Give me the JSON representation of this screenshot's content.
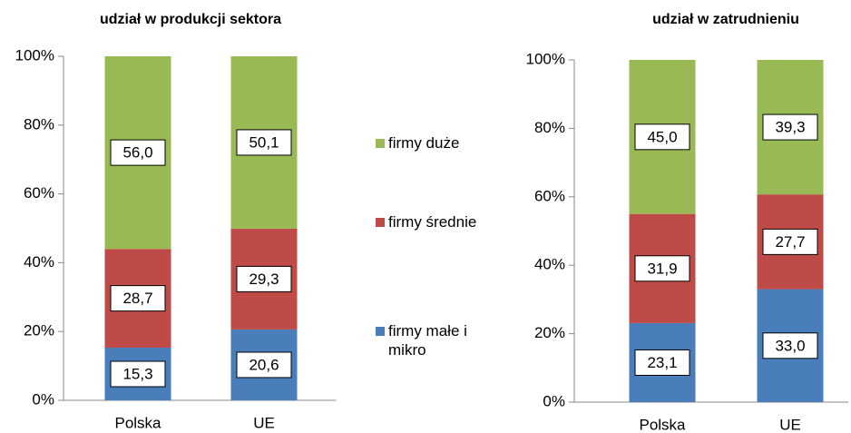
{
  "chart_data": [
    {
      "type": "stacked_bar",
      "title": "udział w produkcji sektora",
      "categories": [
        "Polska",
        "UE"
      ],
      "series": [
        {
          "name": "firmy małe i mikro",
          "color": "#4a7ebb",
          "values": [
            15.3,
            20.6
          ],
          "value_labels": [
            "15,3",
            "20,6"
          ]
        },
        {
          "name": "firmy średnie",
          "color": "#be4b48",
          "values": [
            28.7,
            29.3
          ],
          "value_labels": [
            "28,7",
            "29,3"
          ]
        },
        {
          "name": "firmy duże",
          "color": "#98b954",
          "values": [
            56.0,
            50.1
          ],
          "value_labels": [
            "56,0",
            "50,1"
          ]
        }
      ],
      "ylim": [
        0,
        100
      ],
      "yticks": [
        {
          "value": 0,
          "label": "0%"
        },
        {
          "value": 20,
          "label": "20%"
        },
        {
          "value": 40,
          "label": "40%"
        },
        {
          "value": 60,
          "label": "60%"
        },
        {
          "value": 80,
          "label": "80%"
        },
        {
          "value": 100,
          "label": "100%"
        }
      ],
      "legend": "right"
    },
    {
      "type": "stacked_bar",
      "title": "udział w zatrudnieniu",
      "categories": [
        "Polska",
        "UE"
      ],
      "series": [
        {
          "name": "firmy małe i mikro",
          "color": "#4a7ebb",
          "values": [
            23.1,
            33.0
          ],
          "value_labels": [
            "23,1",
            "33,0"
          ]
        },
        {
          "name": "firmy średnie",
          "color": "#be4b48",
          "values": [
            31.9,
            27.7
          ],
          "value_labels": [
            "31,9",
            "27,7"
          ]
        },
        {
          "name": "firmy duże",
          "color": "#98b954",
          "values": [
            45.0,
            39.3
          ],
          "value_labels": [
            "45,0",
            "39,3"
          ]
        }
      ],
      "ylim": [
        0,
        100
      ],
      "yticks": [
        {
          "value": 0,
          "label": "0%"
        },
        {
          "value": 20,
          "label": "20%"
        },
        {
          "value": 40,
          "label": "40%"
        },
        {
          "value": 60,
          "label": "60%"
        },
        {
          "value": 80,
          "label": "80%"
        },
        {
          "value": 100,
          "label": "100%"
        }
      ]
    }
  ]
}
